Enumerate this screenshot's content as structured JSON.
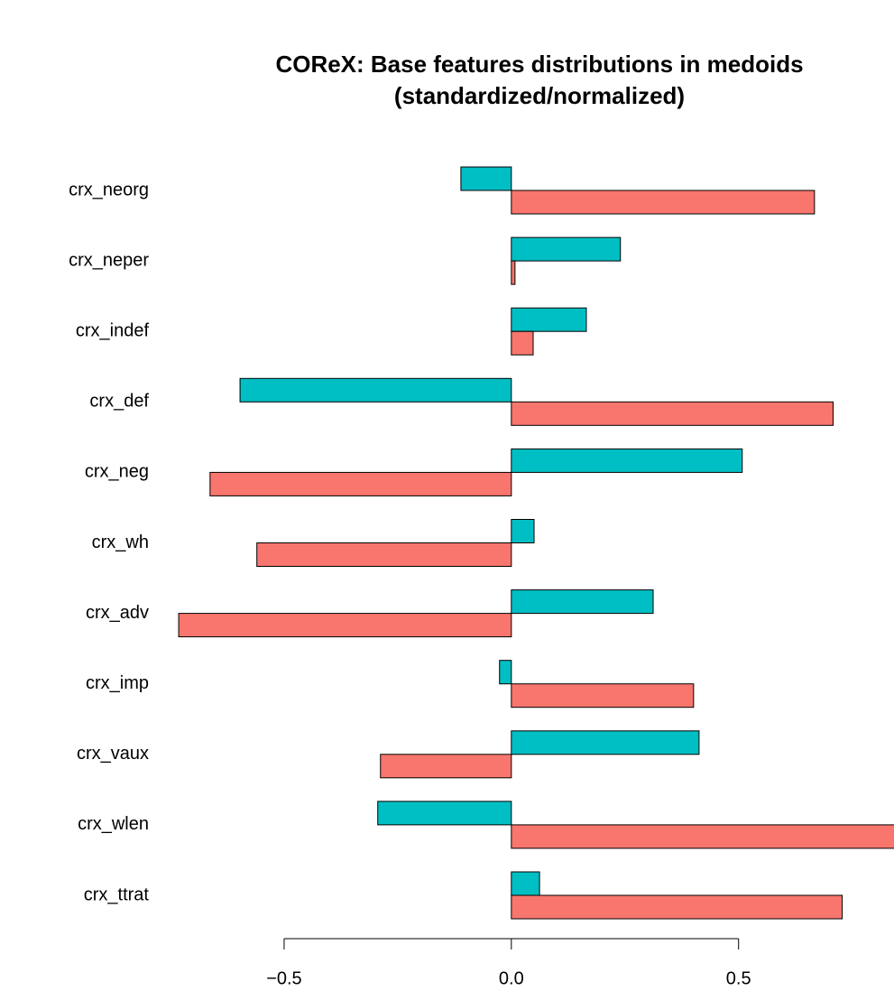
{
  "chart_data": {
    "type": "barh",
    "title": "COReX: Base features distributions in medoids",
    "subtitle": "(standardized/normalized)",
    "categories": [
      "crx_neorg",
      "crx_neper",
      "crx_indef",
      "crx_def",
      "crx_neg",
      "crx_wh",
      "crx_adv",
      "crx_imp",
      "crx_vaux",
      "crx_wlen",
      "crx_ttrat"
    ],
    "series": [
      {
        "color": "#00BFC4",
        "values": [
          -0.111,
          0.24,
          0.165,
          -0.597,
          0.508,
          0.05,
          0.312,
          -0.026,
          0.413,
          -0.294,
          0.062
        ]
      },
      {
        "color": "#F8766D",
        "values": [
          0.667,
          0.008,
          0.048,
          0.708,
          -0.663,
          -0.56,
          -0.732,
          0.401,
          -0.288,
          0.86,
          0.728
        ]
      }
    ],
    "xlim": [
      -0.75,
      0.84
    ],
    "xticks": [
      {
        "value": -0.5,
        "label": "−0.5"
      },
      {
        "value": 0,
        "label": "0.0"
      },
      0.5
    ]
  }
}
